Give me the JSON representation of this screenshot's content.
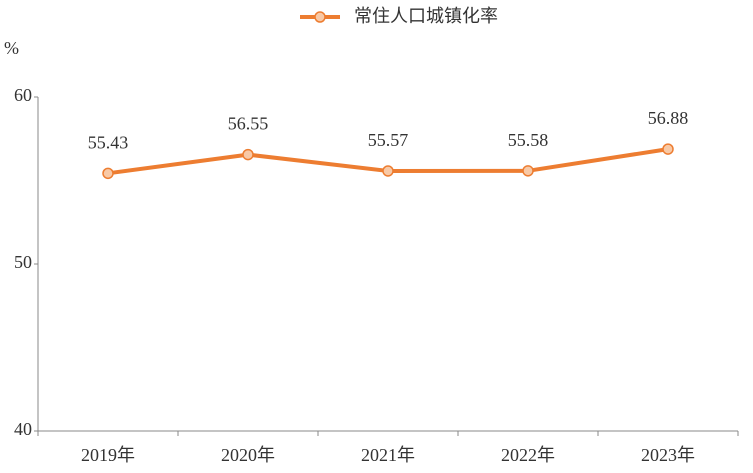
{
  "chart_data": {
    "type": "line",
    "y_label": "%",
    "categories": [
      "2019年",
      "2020年",
      "2021年",
      "2022年",
      "2023年"
    ],
    "series": [
      {
        "name": "常住人口城镇化率",
        "color": "#ed7d31",
        "marker_fill": "#f8c9a6",
        "values": [
          55.43,
          56.55,
          55.57,
          55.58,
          56.88
        ]
      }
    ],
    "ylim": [
      40,
      60
    ],
    "yticks": [
      40,
      50,
      60
    ],
    "grid": false,
    "legend": "top"
  }
}
